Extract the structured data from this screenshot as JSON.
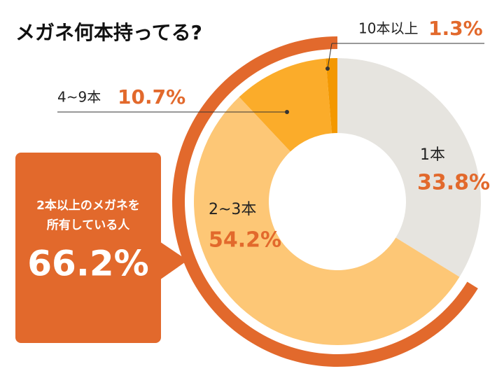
{
  "chart_data": {
    "type": "donut",
    "title": "メガネ何本持ってる?",
    "categories": [
      "1本",
      "2~3本",
      "4~9本",
      "10本以上"
    ],
    "values": [
      33.8,
      54.2,
      10.7,
      1.3
    ],
    "value_labels": [
      "33.8%",
      "54.2%",
      "10.7%",
      "1.3%"
    ],
    "colors": [
      "#e6e4df",
      "#fdc776",
      "#fbac2a",
      "#f39800"
    ],
    "callout": {
      "text_lines": [
        "2本以上のメガネを",
        "所有している人"
      ],
      "value": 66.2,
      "value_label": "66.2%",
      "color": "#e2692c"
    }
  }
}
